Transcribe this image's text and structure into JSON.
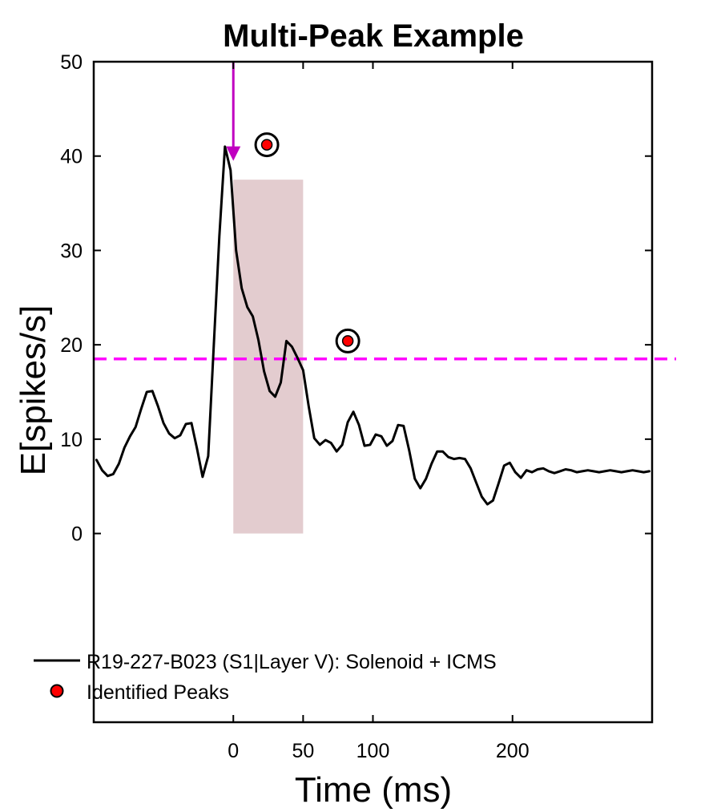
{
  "chart_data": {
    "type": "line",
    "title": "Multi-Peak Example",
    "xlabel": "Time (ms)",
    "ylabel": "E[spikes/s]",
    "xlim": [
      -100,
      300
    ],
    "ylim": [
      -20,
      50
    ],
    "xticks": [
      0,
      50,
      100,
      200
    ],
    "yticks": [
      0,
      10,
      20,
      30,
      40,
      50
    ],
    "grid": false,
    "legend_position": "bottom-left",
    "series": [
      {
        "name": "R19-227-B023 (S1|Layer V): Solenoid + ICMS",
        "color": "#000000",
        "x": [
          -98,
          -94,
          -90,
          -86,
          -82,
          -78,
          -74,
          -70,
          -66,
          -62,
          -58,
          -54,
          -50,
          -46,
          -42,
          -38,
          -34,
          -30,
          -26,
          -22,
          -18,
          -14,
          -10,
          -6,
          -2,
          2,
          6,
          10,
          14,
          18,
          22,
          26,
          30,
          34,
          38,
          42,
          46,
          50,
          54,
          58,
          62,
          66,
          70,
          74,
          78,
          82,
          86,
          90,
          94,
          98,
          102,
          106,
          110,
          114,
          118,
          122,
          126,
          130,
          134,
          138,
          142,
          146,
          150,
          154,
          158,
          162,
          166,
          170,
          174,
          178,
          182,
          186,
          190,
          194,
          198,
          202,
          206,
          210,
          214,
          218,
          222,
          226,
          230,
          234,
          238,
          242,
          246,
          250,
          254,
          258,
          262,
          266,
          270,
          274,
          278,
          282,
          286,
          290,
          294,
          298
        ],
        "y": [
          7.8,
          6.7,
          6.1,
          6.3,
          7.4,
          9.1,
          10.3,
          11.3,
          13.2,
          15.0,
          15.1,
          13.5,
          11.7,
          10.6,
          10.1,
          10.4,
          11.6,
          11.7,
          9.0,
          6.0,
          8.2,
          20.0,
          31.5,
          41.0,
          38.5,
          30.0,
          26.0,
          24.0,
          23.0,
          20.5,
          17.2,
          15.1,
          14.5,
          16.0,
          20.4,
          19.8,
          18.6,
          17.3,
          13.5,
          10.1,
          9.4,
          9.9,
          9.6,
          8.7,
          9.4,
          11.8,
          12.9,
          11.5,
          9.3,
          9.4,
          10.5,
          10.3,
          9.3,
          9.8,
          11.5,
          11.4,
          8.8,
          5.8,
          4.8,
          5.8,
          7.4,
          8.7,
          8.7,
          8.1,
          7.9,
          8.0,
          7.9,
          6.9,
          5.4,
          3.9,
          3.1,
          3.5,
          5.3,
          7.2,
          7.5,
          6.5,
          5.9,
          6.7,
          6.5,
          6.8,
          6.9,
          6.6,
          6.4,
          6.6,
          6.8,
          6.7,
          6.5,
          6.6,
          6.7,
          6.6,
          6.5,
          6.6,
          6.7,
          6.6,
          6.5,
          6.6,
          6.7,
          6.6,
          6.5,
          6.6
        ]
      },
      {
        "name": "Identified Peaks",
        "type": "scatter",
        "color": "#ff0000",
        "x": [
          24,
          82
        ],
        "y": [
          41.2,
          20.4
        ]
      }
    ],
    "threshold": {
      "y": 18.5,
      "color": "#ff00ff",
      "style": "dashed"
    },
    "response_window": {
      "x_start": 0,
      "x_end": 50,
      "y_top": 37.5,
      "y_bottom": 0,
      "color": "#e3cccf"
    },
    "stimulus_marker": {
      "x": 0,
      "y_top": 50,
      "y_tip": 39.5,
      "color": "#c000c0"
    }
  }
}
